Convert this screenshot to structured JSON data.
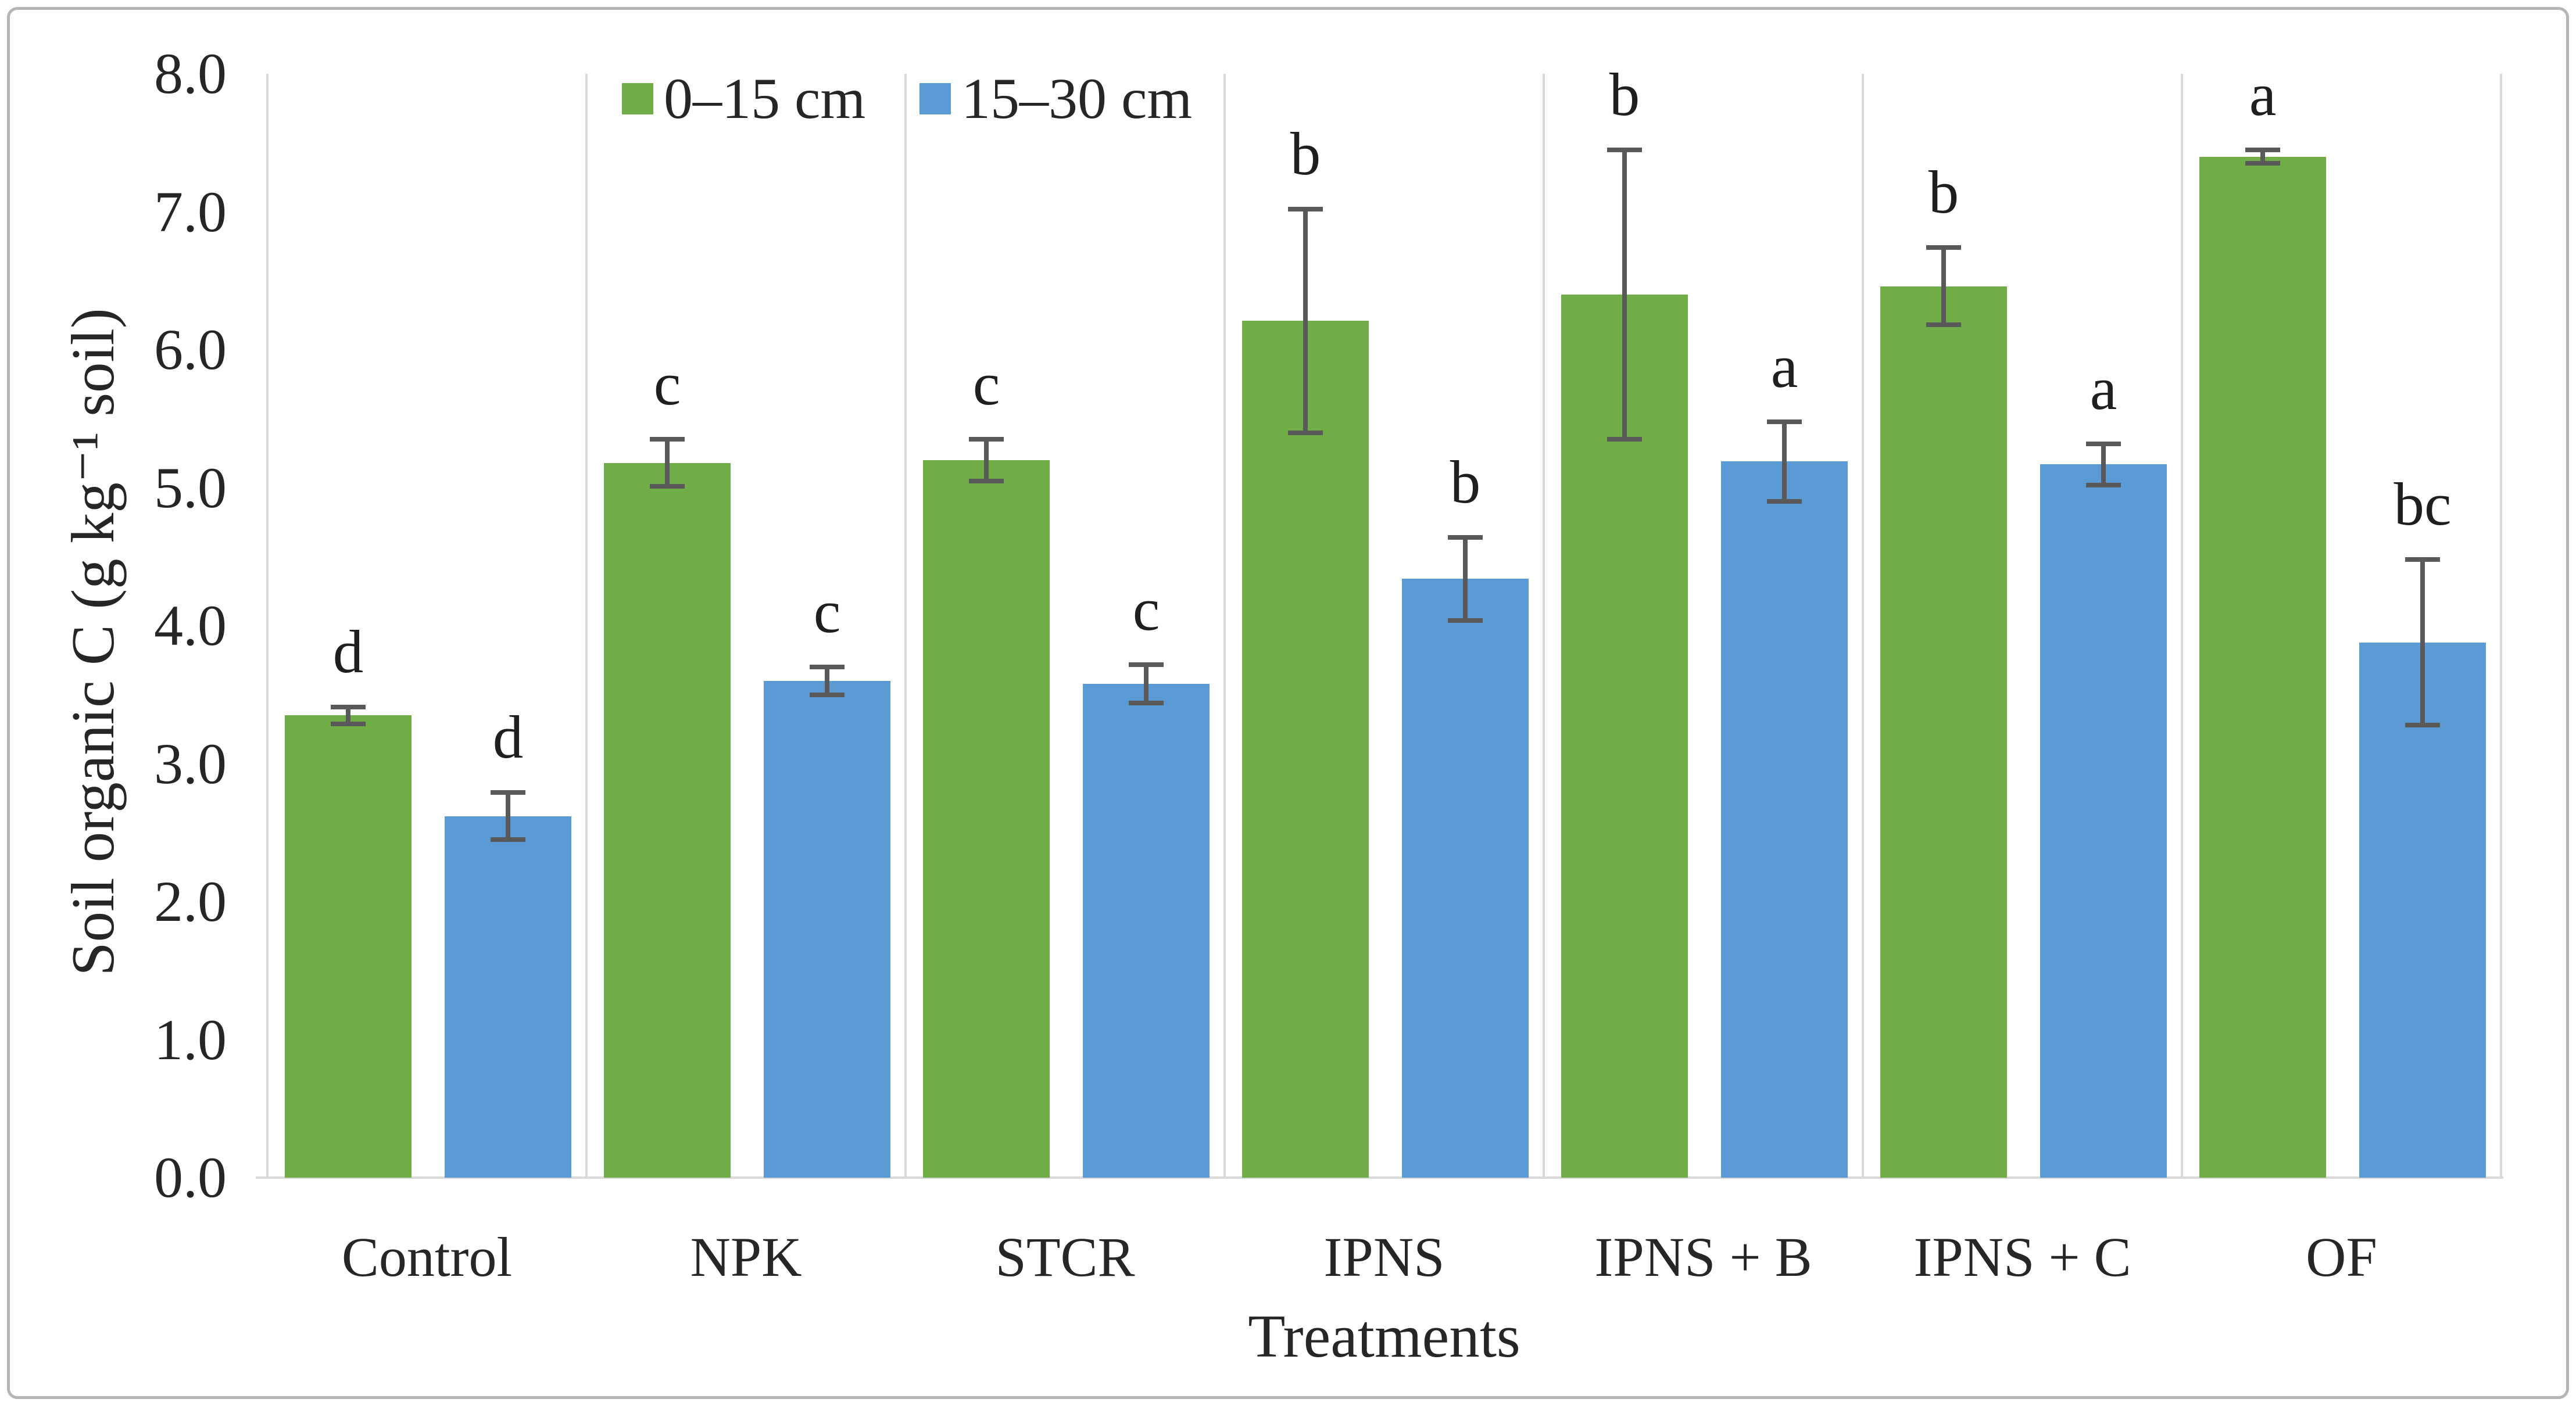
{
  "figure": {
    "background": "#ffffff",
    "border_color": "#b5b5b5"
  },
  "chart_data": {
    "type": "bar",
    "title": "",
    "xlabel": "Treatments",
    "ylabel": "Soil organic C (g kg⁻¹ soil)",
    "ylim": [
      0.0,
      8.0
    ],
    "ytick_interval": 1.0,
    "ytick_labels": [
      "0.0",
      "1.0",
      "2.0",
      "3.0",
      "4.0",
      "5.0",
      "6.0",
      "7.0",
      "8.0"
    ],
    "grid": "vertical-category-separator-lines",
    "legend_position": "top-inside",
    "categories": [
      "Control",
      "NPK",
      "STCR",
      "IPNS",
      "IPNS + B",
      "IPNS + C",
      "OF"
    ],
    "series": [
      {
        "name": "0–15 cm",
        "color": "#70AD47",
        "values": [
          3.35,
          5.18,
          5.2,
          6.21,
          6.4,
          6.46,
          7.4
        ],
        "error_bars": [
          0.06,
          0.17,
          0.15,
          0.81,
          1.05,
          0.28,
          0.05
        ],
        "significance_letters": [
          "d",
          "c",
          "c",
          "b",
          "b",
          "b",
          "a"
        ]
      },
      {
        "name": "15–30 cm",
        "color": "#5B9BD5",
        "values": [
          2.62,
          3.6,
          3.58,
          4.34,
          5.19,
          5.17,
          3.88
        ],
        "error_bars": [
          0.17,
          0.1,
          0.14,
          0.3,
          0.29,
          0.15,
          0.6
        ],
        "significance_letters": [
          "d",
          "c",
          "c",
          "b",
          "a",
          "a",
          "bc"
        ]
      }
    ],
    "error_bar_color": "#595959",
    "axis_line_color": "#d9d9d9",
    "text_color": "#262626"
  }
}
